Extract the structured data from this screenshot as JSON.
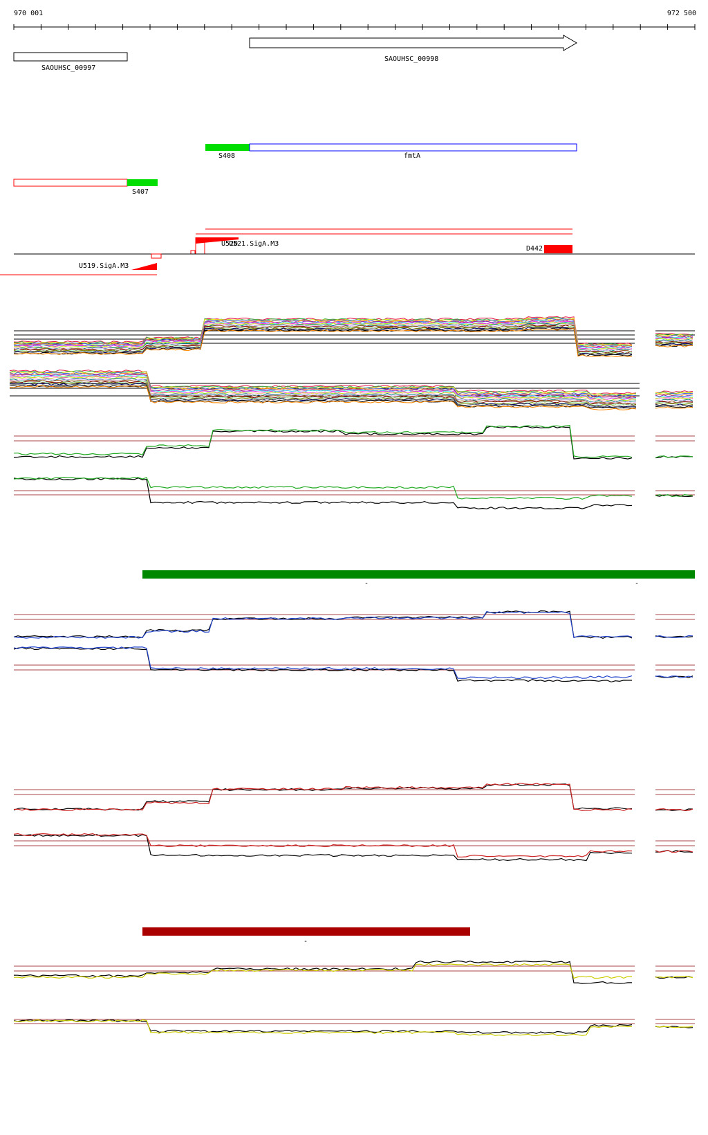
{
  "ruler": {
    "start_label": "970 001",
    "end_label": "972 500"
  },
  "genes": {
    "gene1": "SAOUHSC_00997",
    "gene2": "SAOUHSC_00998"
  },
  "segments": {
    "s408": "S408",
    "fmta": "fmtA",
    "s407": "S407"
  },
  "features": {
    "u520": "U520",
    "u521": "U521.SigA.M3",
    "u519": "U519.SigA.M3",
    "d442": "D442"
  },
  "colors": {
    "green_segment": "#00dd00",
    "fmta_outline": "#0000ff",
    "red_feature": "#ff0000",
    "green_bar": "#008800",
    "red_bar": "#aa0000",
    "trace_green": "#22aa22",
    "trace_blue": "#2244cc",
    "trace_red": "#cc2222",
    "trace_yellow": "#cccc00",
    "threshold": "#aa4444"
  },
  "marks": {
    "green_bar_mark": "-",
    "green_bar_mark2": "-",
    "red_bar_mark": "-"
  }
}
